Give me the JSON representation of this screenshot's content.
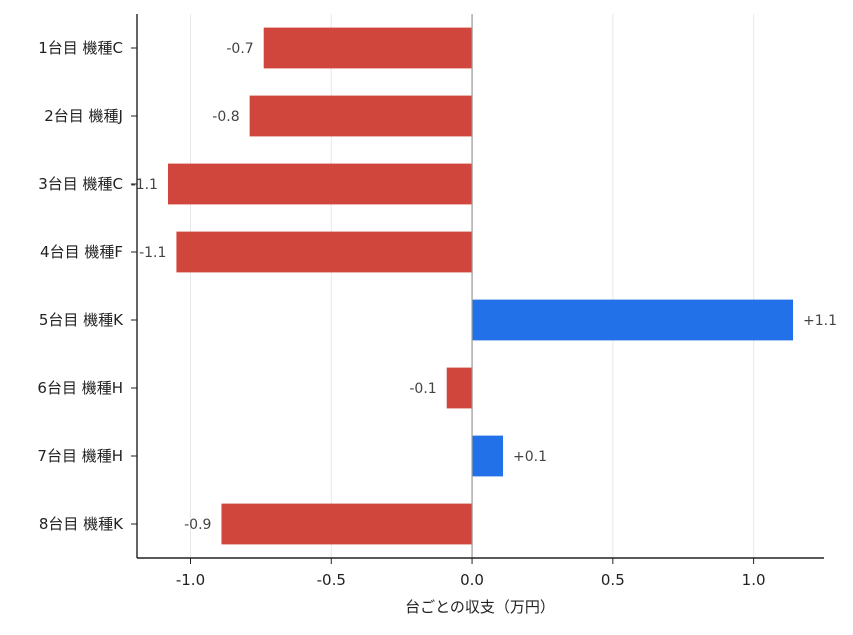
{
  "chart_data": {
    "type": "bar",
    "orientation": "horizontal",
    "title": "",
    "xlabel": "台ごとの収支（万円）",
    "ylabel": "",
    "categories": [
      "1台目 機種C",
      "2台目 機種J",
      "3台目 機種C",
      "4台目 機種F",
      "5台目 機種K",
      "6台目 機種H",
      "7台目 機種H",
      "8台目 機種K"
    ],
    "values": [
      -0.74,
      -0.79,
      -1.08,
      -1.05,
      1.14,
      -0.09,
      0.11,
      -0.89
    ],
    "value_labels": [
      "-0.7",
      "-0.8",
      "-1.1",
      "-1.1",
      "+1.1",
      "-0.1",
      "+0.1",
      "-0.9"
    ],
    "xlim": [
      -1.19,
      1.25
    ],
    "xticks": [
      -1.0,
      -0.5,
      0.0,
      0.5,
      1.0
    ],
    "xtick_labels": [
      "-1.0",
      "-0.5",
      "0.0",
      "0.5",
      "1.0"
    ],
    "grid": "vertical",
    "colors": {
      "positive": "#2271e8",
      "negative": "#d0463c",
      "zero_line": "#999999",
      "grid": "#e8e8e8",
      "axis": "#222222"
    }
  }
}
